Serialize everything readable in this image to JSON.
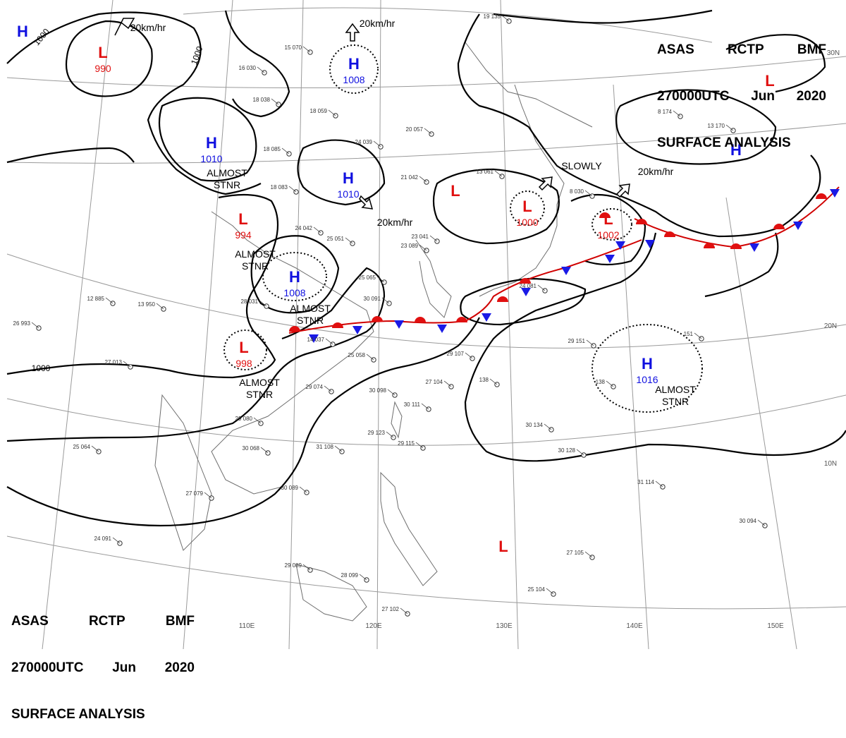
{
  "header": {
    "agency": "ASAS",
    "office": "RCTP",
    "unit": "BMF",
    "datetime": "270000UTC",
    "month": "Jun",
    "year": "2020",
    "title": "SURFACE ANALYSIS"
  },
  "pressure_centers": [
    {
      "type": "H",
      "value": "1008"
    },
    {
      "type": "H",
      "value": "1010"
    },
    {
      "type": "H",
      "value": "1010"
    },
    {
      "type": "H",
      "value": "1008"
    },
    {
      "type": "H",
      "value": "1016"
    },
    {
      "type": "H",
      "value": ""
    },
    {
      "type": "H",
      "value": ""
    },
    {
      "type": "L",
      "value": "990"
    },
    {
      "type": "L",
      "value": "994"
    },
    {
      "type": "L",
      "value": "998"
    },
    {
      "type": "L",
      "value": "1000"
    },
    {
      "type": "L",
      "value": "1002"
    },
    {
      "type": "L",
      "value": ""
    },
    {
      "type": "L",
      "value": ""
    },
    {
      "type": "L",
      "value": ""
    }
  ],
  "motion_labels": [
    "20km/hr",
    "20km/hr",
    "20km/hr",
    "SLOWLY",
    "20km/hr"
  ],
  "stationary_notes": [
    "ALMOST\nSTNR",
    "ALMOST\nSTNR",
    "ALMOST\nSTNR",
    "ALMOST\nSTNR",
    "ALMOST\nSTNR"
  ],
  "isobar_labels": [
    "1000",
    "1000",
    "1000"
  ],
  "grid": {
    "longitudes": [
      "110E",
      "120E",
      "130E",
      "140E",
      "150E"
    ],
    "latitudes": [
      "30N",
      "20N",
      "10N"
    ]
  },
  "station_samples": [
    "15 070",
    "16 030",
    "18 038",
    "18 059",
    "20 057",
    "24 039",
    "18 085",
    "21 042",
    "24 042",
    "25 051",
    "23 041",
    "23 089",
    "25 065",
    "28 031",
    "13 950",
    "12 885",
    "26 993",
    "27 013",
    "25 058",
    "29 074",
    "30 098",
    "29 080",
    "25 064",
    "31 108",
    "29 115",
    "30 111",
    "27 104",
    "29 107",
    "138",
    "29 151",
    "138",
    "30 134",
    "30 128",
    "31 114",
    "30 094",
    "27 105",
    "25 104",
    "29 089",
    "28 099",
    "27 102",
    "24 091",
    "27 079",
    "30 089",
    "30 068",
    "8 174",
    "13 170",
    "19 135",
    "13 061",
    "14 037",
    "30 091",
    "18 083",
    "29 123",
    "151",
    "24 081",
    "8 030"
  ]
}
